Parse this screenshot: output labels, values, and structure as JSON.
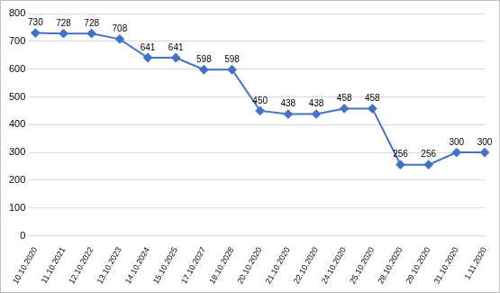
{
  "chart_data": {
    "type": "line",
    "categories": [
      "10.10.2020",
      "11.10.2021",
      "12.10.2022",
      "13.10.2023",
      "14.10.2024",
      "15.10.2025",
      "17.10.2027",
      "18.10.2028",
      "20.10.2020",
      "21.10.2020",
      "22.10.2020",
      "24.10.2020",
      "25.10.2020",
      "28.10.2020",
      "29.10.2020",
      "31.10.2020",
      "1.11.2020"
    ],
    "values": [
      730,
      728,
      728,
      708,
      641,
      641,
      598,
      598,
      450,
      438,
      438,
      458,
      458,
      256,
      256,
      300,
      300
    ],
    "color": "#4472c4",
    "marker": "diamond",
    "line_style": "solid",
    "ylim": [
      0,
      800
    ],
    "yticks": [
      0,
      100,
      200,
      300,
      400,
      500,
      600,
      700,
      800
    ],
    "grid": true,
    "data_labels": true
  }
}
